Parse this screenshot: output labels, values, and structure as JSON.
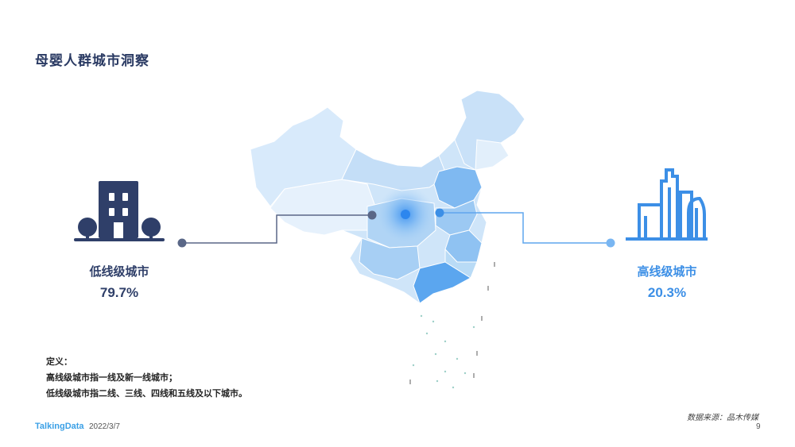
{
  "header": {
    "title": "母婴人群城市洞察"
  },
  "low_tier": {
    "label": "低线级城市",
    "value": "79.7%"
  },
  "high_tier": {
    "label": "高线级城市",
    "value": "20.3%"
  },
  "definitions": {
    "heading": "定义：",
    "line1": "高线级城市指一线及新一线城市；",
    "line2": "低线级城市指二线、三线、四线和五线及以下城市。"
  },
  "footer": {
    "brand": "TalkingData",
    "date": "2022/3/7",
    "source": "数据来源：品木传媒",
    "page_number": "9"
  },
  "colors": {
    "low_accent": "#2f3f69",
    "high_accent": "#3c8fe6",
    "map_light": "#e4f0fc",
    "map_mid": "#bcdcf7",
    "map_dark": "#5ba6ef"
  },
  "icons": {
    "low": "building-with-trees-icon",
    "high": "city-skyline-icon",
    "map": "china-map"
  }
}
